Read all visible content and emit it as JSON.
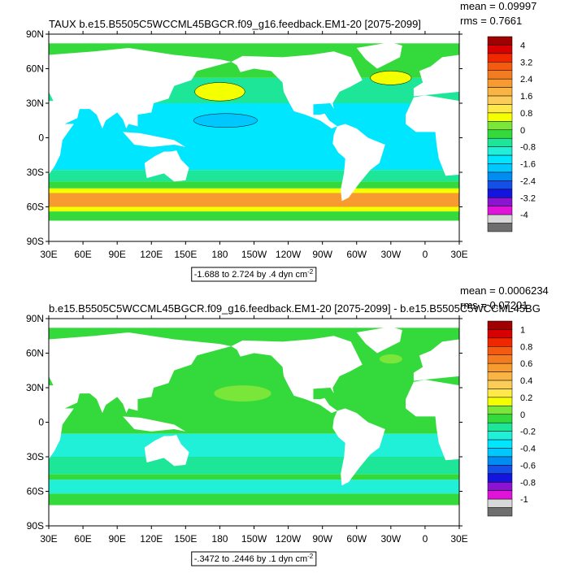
{
  "lat_labels": [
    "90N",
    "60N",
    "30N",
    "0",
    "30S",
    "60S",
    "90S"
  ],
  "lon_labels": [
    "30E",
    "60E",
    "90E",
    "120E",
    "150E",
    "180",
    "150W",
    "120W",
    "90W",
    "60W",
    "30W",
    "0",
    "30E"
  ],
  "colorbar_colors": [
    "#a00000",
    "#d80000",
    "#f02800",
    "#f45a10",
    "#f47c20",
    "#f79a30",
    "#f9b444",
    "#fccc58",
    "#ffe84a",
    "#f4ff00",
    "#7ae63a",
    "#34da3c",
    "#1ee698",
    "#20f0d8",
    "#00e6ff",
    "#00c8ff",
    "#008cf0",
    "#1450e8",
    "#1414e0",
    "#8c14d0",
    "#e014d8",
    "#d8d8d8",
    "#6e6e6e"
  ],
  "panels": [
    {
      "title": "TAUX b.e15.B5505C5WCCML45BGCR.f09_g16.feedback.EM1-20 [2075-2099]",
      "mean": "mean = 0.09997",
      "rms": "rms = 0.7661",
      "range_label": "-1.688 to 2.724 by .4 dyn cm",
      "units_exponent": "-2",
      "colorbar_labels": [
        "4",
        "3.2",
        "2.4",
        "1.6",
        "0.8",
        "0",
        "-0.8",
        "-1.6",
        "-2.4",
        "-3.2",
        "-4"
      ]
    },
    {
      "title": "b.e15.B5505C5WCCML45BGCR.f09_g16.feedback.EM1-20 [2075-2099] - b.e15.B5505C5WCCML45BG",
      "mean": "mean = 0.0006234",
      "rms": "rms = 0.07201",
      "range_label": "-.3472 to .2446 by .1 dyn cm",
      "units_exponent": "-2",
      "colorbar_labels": [
        "1",
        "0.8",
        "0.6",
        "0.4",
        "0.2",
        "0",
        "-0.2",
        "-0.4",
        "-0.6",
        "-0.8",
        "-1"
      ]
    }
  ]
}
